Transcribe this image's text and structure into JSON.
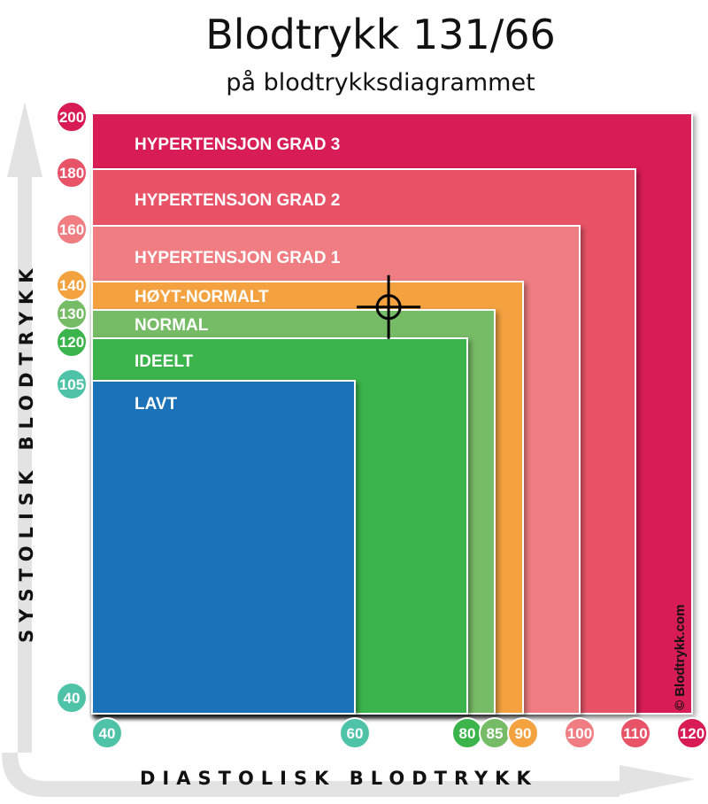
{
  "title": "Blodtrykk 131/66",
  "subtitle": "på blodtrykksdiagrammet",
  "watermark": "© Blodtrykk.com",
  "chart_data": {
    "type": "area",
    "title": "Blodtrykk 131/66",
    "subtitle": "på blodtrykksdiagrammet",
    "xlabel": "DIASTOLISK BLODTRYKK",
    "ylabel": "SYSTOLISK BLODTRYKK",
    "x_ticks": [
      40,
      60,
      80,
      85,
      90,
      100,
      110,
      120
    ],
    "y_ticks": [
      40,
      105,
      120,
      130,
      140,
      160,
      180,
      200
    ],
    "xlim": [
      40,
      120
    ],
    "ylim": [
      40,
      200
    ],
    "zones": [
      {
        "name": "HYPERTENSJON GRAD 3",
        "x_max": 120,
        "y_max": 200,
        "color": "#d81b55"
      },
      {
        "name": "HYPERTENSJON GRAD 2",
        "x_max": 110,
        "y_max": 180,
        "color": "#e95367"
      },
      {
        "name": "HYPERTENSJON GRAD 1",
        "x_max": 100,
        "y_max": 160,
        "color": "#ef7d82"
      },
      {
        "name": "HØYT-NORMALT",
        "x_max": 90,
        "y_max": 140,
        "color": "#f4a13f"
      },
      {
        "name": "NORMAL",
        "x_max": 85,
        "y_max": 130,
        "color": "#76bb66"
      },
      {
        "name": "IDEELT",
        "x_max": 80,
        "y_max": 120,
        "color": "#3bb44c"
      },
      {
        "name": "LAVT",
        "x_max": 60,
        "y_max": 105,
        "color": "#1f72b8"
      }
    ],
    "marker": {
      "systolic": 131,
      "diastolic": 66
    }
  }
}
